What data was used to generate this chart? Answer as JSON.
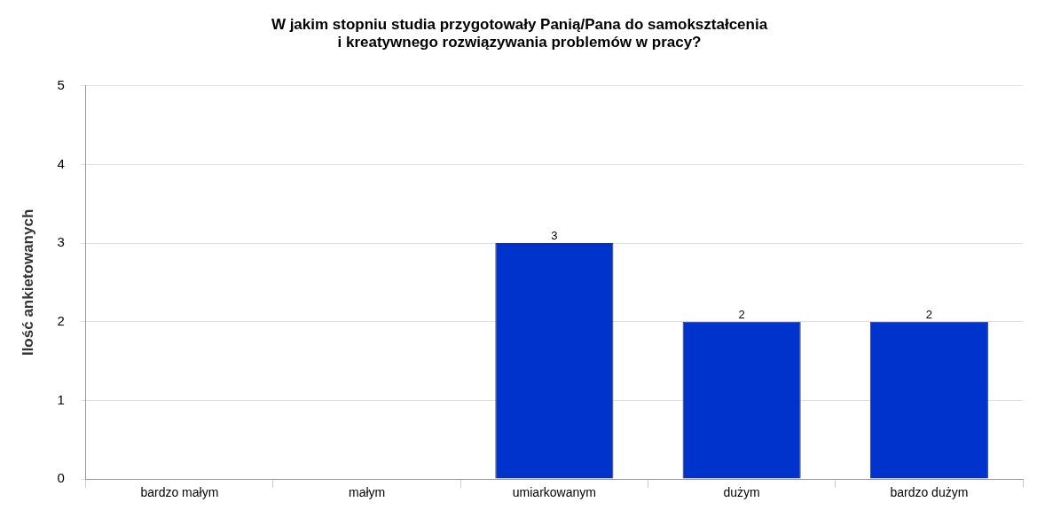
{
  "chart_data": {
    "type": "bar",
    "title": "W jakim stopniu studia przygotowały Panią/Pana do samokształcenia\ni kreatywnego rozwiązywania problemów w pracy?",
    "ylabel": "Ilość ankietowanych",
    "categories": [
      "bardzo małym",
      "małym",
      "umiarkowanym",
      "dużym",
      "bardzo dużym"
    ],
    "values": [
      0,
      0,
      3,
      2,
      2
    ],
    "color": "#0033cc",
    "value_labels": [
      null,
      null,
      "3",
      "2",
      "2"
    ],
    "ylim": [
      0,
      5
    ],
    "yticks": [
      0,
      1,
      2,
      3,
      4,
      5
    ],
    "grid": "y",
    "legend": false
  }
}
